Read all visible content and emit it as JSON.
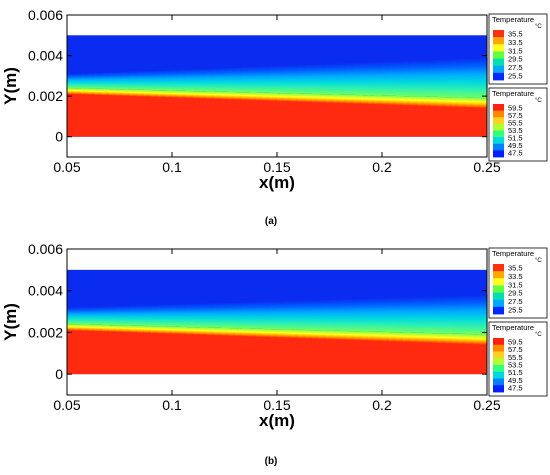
{
  "chart_data": [
    {
      "type": "heatmap",
      "caption": "(a)",
      "xlabel": "x(m)",
      "ylabel": "Y(m)",
      "xlim": [
        0.05,
        0.25
      ],
      "ylim": [
        -0.001,
        0.006
      ],
      "xticks": [
        "0.05",
        "0.1",
        "0.15",
        "0.2",
        "0.25"
      ],
      "yticks": [
        "0",
        "0.002",
        "0.004",
        "0.006"
      ],
      "domain": {
        "x": [
          0.05,
          0.25
        ],
        "y": [
          0,
          0.005
        ]
      },
      "interface": {
        "x": [
          0.05,
          0.25
        ],
        "y": [
          0.0024,
          0.0019
        ]
      },
      "upper_band": {
        "x": [
          0.05,
          0.25
        ],
        "y": [
          0.0031,
          0.0039
        ]
      },
      "lower_band": {
        "x": [
          0.05,
          0.25
        ],
        "y": [
          0.0021,
          0.0014
        ]
      },
      "legends": [
        {
          "title": "Temperature",
          "unit": "°C",
          "labels": [
            "35.5",
            "33.5",
            "31.5",
            "29.5",
            "27.5",
            "25.5"
          ]
        },
        {
          "title": "Temperature",
          "unit": "°C",
          "labels": [
            "59.5",
            "57.5",
            "55.5",
            "53.5",
            "51.5",
            "49.5",
            "47.5"
          ]
        }
      ]
    },
    {
      "type": "heatmap",
      "caption": "(b)",
      "xlabel": "x(m)",
      "ylabel": "Y(m)",
      "xlim": [
        0.05,
        0.25
      ],
      "ylim": [
        -0.001,
        0.006
      ],
      "xticks": [
        "0.05",
        "0.1",
        "0.15",
        "0.2",
        "0.25"
      ],
      "yticks": [
        "0",
        "0.002",
        "0.004",
        "0.006"
      ],
      "domain": {
        "x": [
          0.05,
          0.25
        ],
        "y": [
          0,
          0.005
        ]
      },
      "interface": {
        "x": [
          0.05,
          0.25
        ],
        "y": [
          0.0024,
          0.0019
        ]
      },
      "upper_band": {
        "x": [
          0.05,
          0.25
        ],
        "y": [
          0.0032,
          0.0038
        ]
      },
      "lower_band": {
        "x": [
          0.05,
          0.25
        ],
        "y": [
          0.0021,
          0.0014
        ]
      },
      "legends": [
        {
          "title": "Temperature",
          "unit": "°C",
          "labels": [
            "35.5",
            "33.5",
            "31.5",
            "29.5",
            "27.5",
            "25.5"
          ]
        },
        {
          "title": "Temperature",
          "unit": "°C",
          "labels": [
            "59.5",
            "57.5",
            "55.5",
            "53.5",
            "51.5",
            "49.5",
            "47.5"
          ]
        }
      ]
    }
  ],
  "colors": {
    "cold_scale": [
      "#ff3010",
      "#ffa800",
      "#ffff20",
      "#60ff40",
      "#00e0b0",
      "#00a8ff",
      "#0028ff"
    ],
    "hot_scale": [
      "#ff2010",
      "#ff8800",
      "#ffd020",
      "#b0ff30",
      "#30ff80",
      "#00d8e0",
      "#0080ff",
      "#0020ff"
    ],
    "cold_fill": "#0a2cf0",
    "hot_fill": "#ff2a10",
    "background": "#ffffff"
  }
}
